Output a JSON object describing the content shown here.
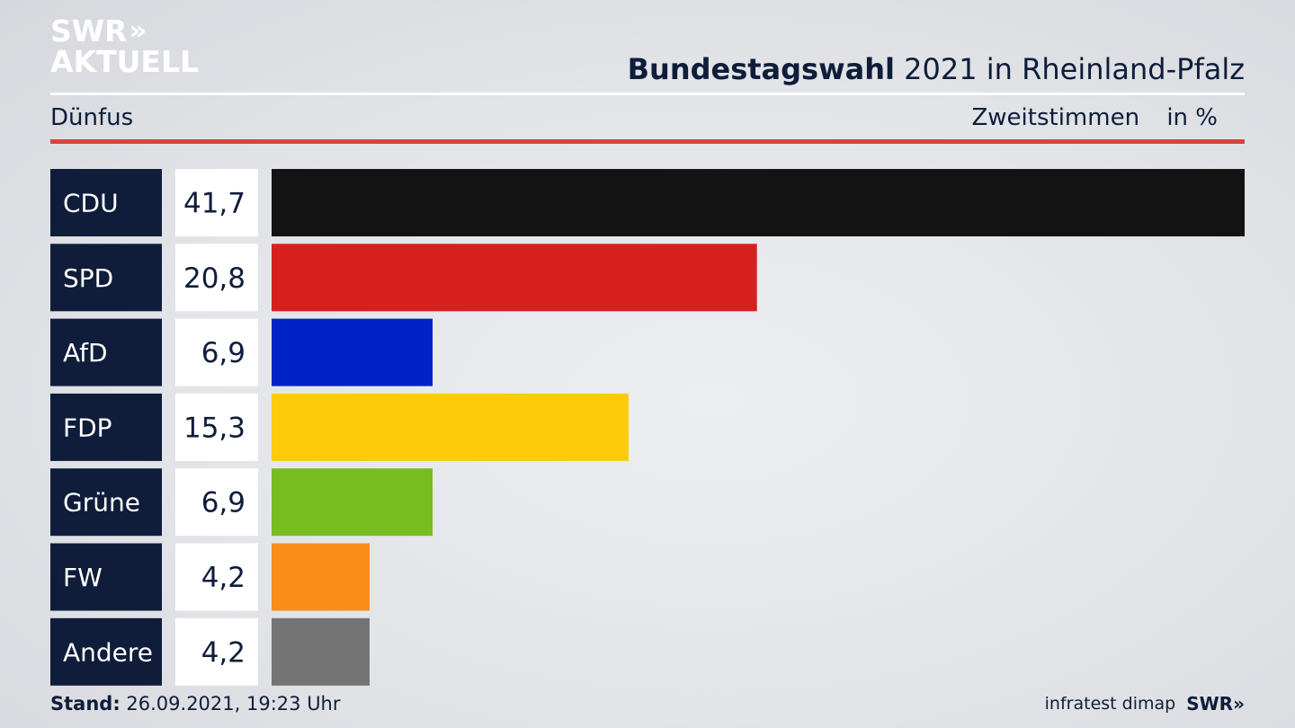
{
  "logo": {
    "line1": "SWR",
    "chevrons": "»",
    "line2": "AKTUELL"
  },
  "header": {
    "title_bold": "Bundestagswahl",
    "title_rest": "2021 in Rheinland-Pfalz",
    "region": "Dünfus",
    "vote_type": "Zweitstimmen",
    "unit": "in %"
  },
  "footer": {
    "stand_label": "Stand:",
    "stand_value": "26.09.2021, 19:23 Uhr",
    "source": "infratest dimap",
    "broadcaster": "SWR»"
  },
  "chart_data": {
    "type": "bar",
    "orientation": "horizontal",
    "categories": [
      "CDU",
      "SPD",
      "AfD",
      "FDP",
      "Grüne",
      "FW",
      "Andere"
    ],
    "values": [
      41.7,
      20.8,
      6.9,
      15.3,
      6.9,
      4.2,
      4.2
    ],
    "value_labels": [
      "41,7",
      "20,8",
      "6,9",
      "15,3",
      "6,9",
      "4,2",
      "4,2"
    ],
    "colors": [
      "#131313",
      "#d81f20",
      "#0022c8",
      "#fdcb0a",
      "#78bd1f",
      "#fa8c19",
      "#747474"
    ],
    "xlim": [
      0,
      41.7
    ],
    "grid": false,
    "legend": "none"
  }
}
